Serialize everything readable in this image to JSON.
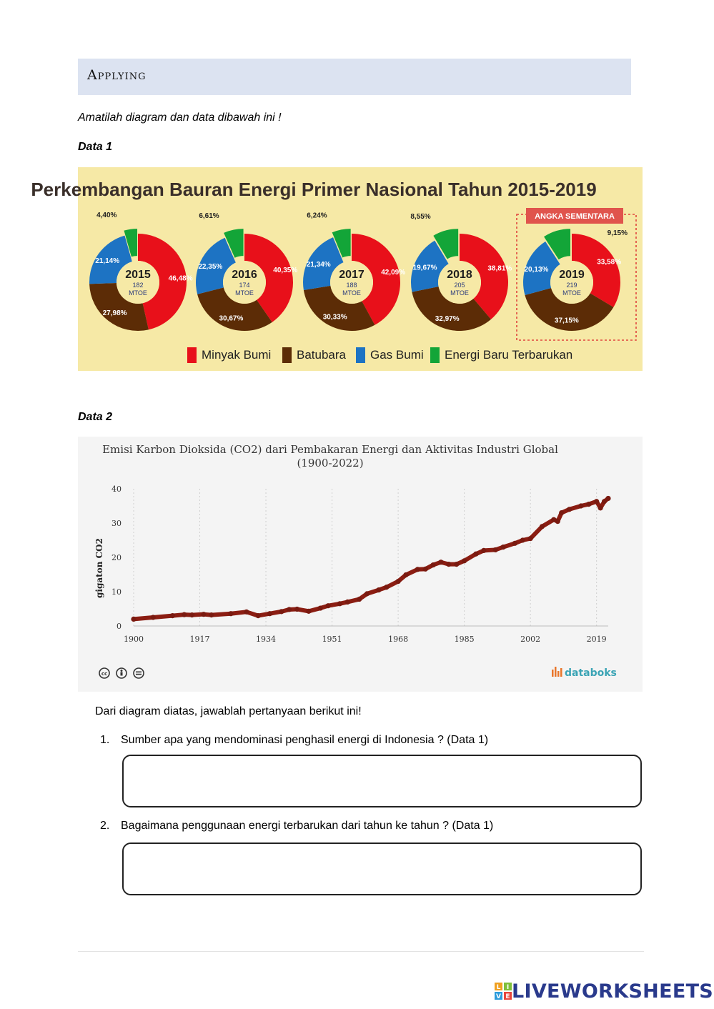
{
  "section": {
    "title": "Applying"
  },
  "instruction": "Amatilah diagram dan data dibawah ini !",
  "data1": {
    "label": "Data 1",
    "chart_data": {
      "type": "pie",
      "title": "Perkembangan Bauran Energi Primer Nasional Tahun 2015-2019",
      "unit_label": "MTOE",
      "provisional_label": "ANGKA SEMENTARA",
      "legend": [
        "Minyak Bumi",
        "Batubara",
        "Gas Bumi",
        "Energi Baru Terbarukan"
      ],
      "colors": {
        "Minyak Bumi": "#e8101a",
        "Batubara": "#5c2c06",
        "Gas Bumi": "#1d73c3",
        "Energi Baru Terbarukan": "#13a538"
      },
      "years": [
        {
          "year": "2015",
          "total": "182",
          "values": [
            46.48,
            27.98,
            21.14,
            4.4
          ],
          "labels": [
            "46,48%",
            "27,98%",
            "21,14%",
            "4,40%"
          ]
        },
        {
          "year": "2016",
          "total": "174",
          "values": [
            40.35,
            30.67,
            22.35,
            6.61
          ],
          "labels": [
            "40,35%",
            "30,67%",
            "22,35%",
            "6,61%"
          ]
        },
        {
          "year": "2017",
          "total": "188",
          "values": [
            42.09,
            30.33,
            21.34,
            6.24
          ],
          "labels": [
            "42,09%",
            "30,33%",
            "21,34%",
            "6,24%"
          ]
        },
        {
          "year": "2018",
          "total": "205",
          "values": [
            38.81,
            32.97,
            19.67,
            8.55
          ],
          "labels": [
            "38,81%",
            "32,97%",
            "19,67%",
            "8,55%"
          ]
        },
        {
          "year": "2019",
          "total": "219",
          "values": [
            33.58,
            37.15,
            20.13,
            9.15
          ],
          "labels": [
            "33,58%",
            "37,15%",
            "20,13%",
            "9,15%"
          ],
          "provisional": true
        }
      ]
    }
  },
  "data2": {
    "label": "Data 2",
    "chart_data": {
      "type": "line",
      "title": "Emisi Karbon Dioksida (CO2) dari Pembakaran Energi dan Aktivitas Industri Global",
      "subtitle": "(1900-2022)",
      "ylabel": "gigaton CO2",
      "xlim": [
        1900,
        2022
      ],
      "ylim": [
        0,
        40
      ],
      "xticks": [
        1900,
        1917,
        1934,
        1951,
        1968,
        1985,
        2002,
        2019
      ],
      "yticks": [
        0,
        10,
        20,
        30,
        40
      ],
      "line_color": "#8b1d12",
      "x": [
        1900,
        1905,
        1910,
        1913,
        1915,
        1918,
        1920,
        1925,
        1929,
        1932,
        1935,
        1938,
        1940,
        1942,
        1945,
        1948,
        1950,
        1953,
        1955,
        1958,
        1960,
        1963,
        1965,
        1968,
        1970,
        1973,
        1975,
        1977,
        1979,
        1981,
        1983,
        1985,
        1988,
        1990,
        1993,
        1995,
        1998,
        2000,
        2002,
        2005,
        2008,
        2009,
        2010,
        2012,
        2015,
        2017,
        2019,
        2020,
        2021,
        2022
      ],
      "y": [
        2.0,
        2.5,
        3.0,
        3.3,
        3.2,
        3.4,
        3.2,
        3.6,
        4.1,
        3.0,
        3.6,
        4.2,
        4.8,
        4.9,
        4.3,
        5.2,
        5.9,
        6.5,
        7.0,
        7.8,
        9.4,
        10.5,
        11.3,
        13.0,
        14.9,
        16.5,
        16.6,
        17.8,
        18.6,
        18.0,
        18.0,
        19.0,
        21.0,
        22.0,
        22.2,
        23.0,
        24.1,
        25.0,
        25.5,
        29.0,
        31.0,
        30.5,
        33.0,
        34.0,
        35.0,
        35.5,
        36.3,
        34.4,
        36.3,
        37.2
      ],
      "watermark": "databoks"
    }
  },
  "questions_intro": "Dari diagram diatas, jawablah pertanyaan berikut ini!",
  "questions": [
    {
      "number": "1.",
      "text": "Sumber apa yang mendominasi penghasil energi di Indonesia ? (Data 1)"
    },
    {
      "number": "2.",
      "text": "Bagaimana penggunaan energi terbarukan dari tahun ke tahun ? (Data 1)"
    }
  ],
  "footer": {
    "brand": "LIVEWORKSHEETS",
    "logo_letters": [
      "L",
      "I",
      "V",
      "E"
    ]
  }
}
